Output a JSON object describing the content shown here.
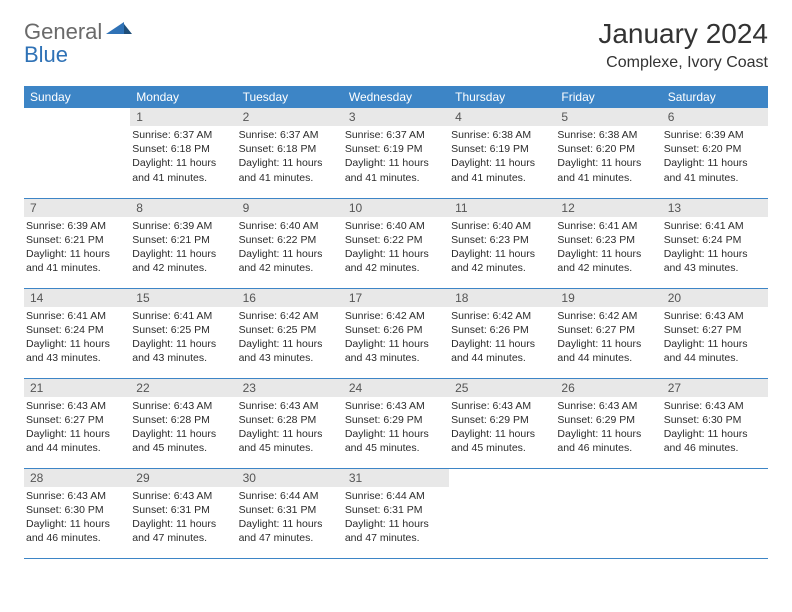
{
  "brand": {
    "part1": "General",
    "part2": "Blue"
  },
  "title": "January 2024",
  "location": "Complexe, Ivory Coast",
  "colors": {
    "header_bg": "#3d85c6",
    "header_text": "#ffffff",
    "daynum_bg": "#e8e8e8",
    "daynum_text": "#555555",
    "body_text": "#2b2b2b",
    "rule": "#3d85c6",
    "logo_gray": "#6a6a6a",
    "logo_blue": "#2f72b6"
  },
  "weekdays": [
    "Sunday",
    "Monday",
    "Tuesday",
    "Wednesday",
    "Thursday",
    "Friday",
    "Saturday"
  ],
  "weeks": [
    [
      null,
      {
        "n": "1",
        "sr": "6:37 AM",
        "ss": "6:18 PM",
        "dl": "11 hours and 41 minutes."
      },
      {
        "n": "2",
        "sr": "6:37 AM",
        "ss": "6:18 PM",
        "dl": "11 hours and 41 minutes."
      },
      {
        "n": "3",
        "sr": "6:37 AM",
        "ss": "6:19 PM",
        "dl": "11 hours and 41 minutes."
      },
      {
        "n": "4",
        "sr": "6:38 AM",
        "ss": "6:19 PM",
        "dl": "11 hours and 41 minutes."
      },
      {
        "n": "5",
        "sr": "6:38 AM",
        "ss": "6:20 PM",
        "dl": "11 hours and 41 minutes."
      },
      {
        "n": "6",
        "sr": "6:39 AM",
        "ss": "6:20 PM",
        "dl": "11 hours and 41 minutes."
      }
    ],
    [
      {
        "n": "7",
        "sr": "6:39 AM",
        "ss": "6:21 PM",
        "dl": "11 hours and 41 minutes."
      },
      {
        "n": "8",
        "sr": "6:39 AM",
        "ss": "6:21 PM",
        "dl": "11 hours and 42 minutes."
      },
      {
        "n": "9",
        "sr": "6:40 AM",
        "ss": "6:22 PM",
        "dl": "11 hours and 42 minutes."
      },
      {
        "n": "10",
        "sr": "6:40 AM",
        "ss": "6:22 PM",
        "dl": "11 hours and 42 minutes."
      },
      {
        "n": "11",
        "sr": "6:40 AM",
        "ss": "6:23 PM",
        "dl": "11 hours and 42 minutes."
      },
      {
        "n": "12",
        "sr": "6:41 AM",
        "ss": "6:23 PM",
        "dl": "11 hours and 42 minutes."
      },
      {
        "n": "13",
        "sr": "6:41 AM",
        "ss": "6:24 PM",
        "dl": "11 hours and 43 minutes."
      }
    ],
    [
      {
        "n": "14",
        "sr": "6:41 AM",
        "ss": "6:24 PM",
        "dl": "11 hours and 43 minutes."
      },
      {
        "n": "15",
        "sr": "6:41 AM",
        "ss": "6:25 PM",
        "dl": "11 hours and 43 minutes."
      },
      {
        "n": "16",
        "sr": "6:42 AM",
        "ss": "6:25 PM",
        "dl": "11 hours and 43 minutes."
      },
      {
        "n": "17",
        "sr": "6:42 AM",
        "ss": "6:26 PM",
        "dl": "11 hours and 43 minutes."
      },
      {
        "n": "18",
        "sr": "6:42 AM",
        "ss": "6:26 PM",
        "dl": "11 hours and 44 minutes."
      },
      {
        "n": "19",
        "sr": "6:42 AM",
        "ss": "6:27 PM",
        "dl": "11 hours and 44 minutes."
      },
      {
        "n": "20",
        "sr": "6:43 AM",
        "ss": "6:27 PM",
        "dl": "11 hours and 44 minutes."
      }
    ],
    [
      {
        "n": "21",
        "sr": "6:43 AM",
        "ss": "6:27 PM",
        "dl": "11 hours and 44 minutes."
      },
      {
        "n": "22",
        "sr": "6:43 AM",
        "ss": "6:28 PM",
        "dl": "11 hours and 45 minutes."
      },
      {
        "n": "23",
        "sr": "6:43 AM",
        "ss": "6:28 PM",
        "dl": "11 hours and 45 minutes."
      },
      {
        "n": "24",
        "sr": "6:43 AM",
        "ss": "6:29 PM",
        "dl": "11 hours and 45 minutes."
      },
      {
        "n": "25",
        "sr": "6:43 AM",
        "ss": "6:29 PM",
        "dl": "11 hours and 45 minutes."
      },
      {
        "n": "26",
        "sr": "6:43 AM",
        "ss": "6:29 PM",
        "dl": "11 hours and 46 minutes."
      },
      {
        "n": "27",
        "sr": "6:43 AM",
        "ss": "6:30 PM",
        "dl": "11 hours and 46 minutes."
      }
    ],
    [
      {
        "n": "28",
        "sr": "6:43 AM",
        "ss": "6:30 PM",
        "dl": "11 hours and 46 minutes."
      },
      {
        "n": "29",
        "sr": "6:43 AM",
        "ss": "6:31 PM",
        "dl": "11 hours and 47 minutes."
      },
      {
        "n": "30",
        "sr": "6:44 AM",
        "ss": "6:31 PM",
        "dl": "11 hours and 47 minutes."
      },
      {
        "n": "31",
        "sr": "6:44 AM",
        "ss": "6:31 PM",
        "dl": "11 hours and 47 minutes."
      },
      null,
      null,
      null
    ]
  ],
  "labels": {
    "sunrise": "Sunrise:",
    "sunset": "Sunset:",
    "daylight": "Daylight:"
  }
}
